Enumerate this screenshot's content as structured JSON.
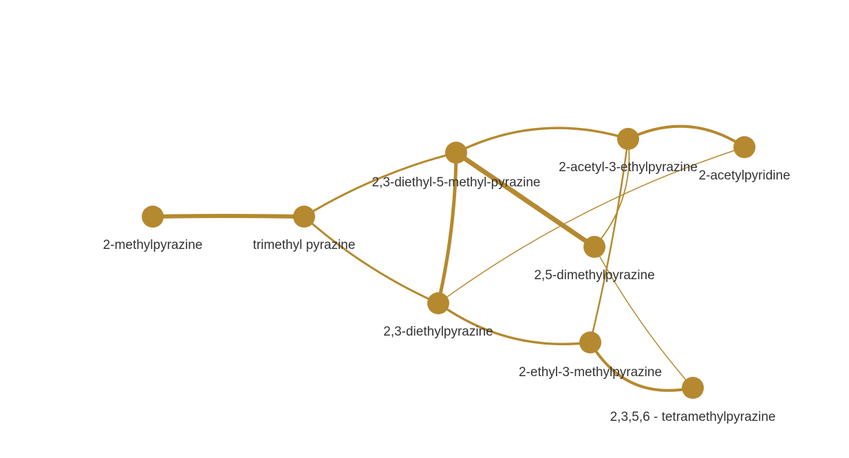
{
  "graph": {
    "node_color": "#b5892f",
    "edge_color": "#b5892f",
    "label_color": "#333333",
    "nodes": [
      {
        "id": "2mp",
        "label": "2-methylpyrazine"
      },
      {
        "id": "tmp",
        "label": "trimethyl pyrazine"
      },
      {
        "id": "dem",
        "label": "2,3-diethyl-5-methyl-pyrazine"
      },
      {
        "id": "aep",
        "label": "2-acetyl-3-ethylpyrazine"
      },
      {
        "id": "apy",
        "label": "2-acetylpyridine"
      },
      {
        "id": "dmp",
        "label": "2,5-dimethylpyrazine"
      },
      {
        "id": "dep",
        "label": "2,3-diethylpyrazine"
      },
      {
        "id": "emp",
        "label": "2-ethyl-3-methylpyrazine"
      },
      {
        "id": "ttp",
        "label": "2,3,5,6 - tetramethylpyrazine"
      }
    ],
    "edges": [
      {
        "source": "2mp",
        "target": "tmp",
        "weight": 6
      },
      {
        "source": "tmp",
        "target": "dem",
        "weight": 3
      },
      {
        "source": "tmp",
        "target": "dep",
        "weight": 3
      },
      {
        "source": "dem",
        "target": "aep",
        "weight": 3.5
      },
      {
        "source": "dem",
        "target": "dmp",
        "weight": 7
      },
      {
        "source": "dem",
        "target": "dep",
        "weight": 5
      },
      {
        "source": "aep",
        "target": "apy",
        "weight": 4
      },
      {
        "source": "aep",
        "target": "dmp",
        "weight": 1.8
      },
      {
        "source": "aep",
        "target": "emp",
        "weight": 2.5
      },
      {
        "source": "apy",
        "target": "dep",
        "weight": 1.5
      },
      {
        "source": "dmp",
        "target": "ttp",
        "weight": 1.5
      },
      {
        "source": "dep",
        "target": "emp",
        "weight": 3.5
      },
      {
        "source": "emp",
        "target": "ttp",
        "weight": 4
      }
    ]
  }
}
